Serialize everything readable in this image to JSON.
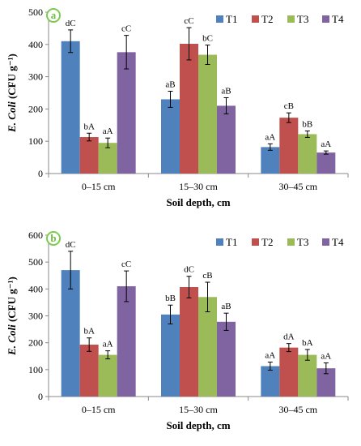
{
  "chart_data": [
    {
      "type": "bar",
      "panel_label": "a",
      "categories": [
        "0–15 cm",
        "15–30 cm",
        "30–45 cm"
      ],
      "series": [
        {
          "name": "T1",
          "values": [
            410,
            230,
            82
          ],
          "errors": [
            35,
            25,
            10
          ],
          "labels": [
            "dC",
            "aB",
            "aA"
          ]
        },
        {
          "name": "T2",
          "values": [
            113,
            402,
            173
          ],
          "errors": [
            12,
            50,
            15
          ],
          "labels": [
            "bA",
            "cC",
            "cB"
          ]
        },
        {
          "name": "T3",
          "values": [
            95,
            368,
            122
          ],
          "errors": [
            15,
            30,
            10
          ],
          "labels": [
            "aA",
            "bC",
            "bB"
          ]
        },
        {
          "name": "T4",
          "values": [
            376,
            210,
            65
          ],
          "errors": [
            52,
            25,
            5
          ],
          "labels": [
            "cC",
            "aB",
            "aA"
          ]
        }
      ],
      "xlabel": "Soil depth, cm",
      "ylabel": "E. Coli (CFU g⁻¹)",
      "yticks": [
        "0",
        "100",
        "200",
        "300",
        "400",
        "500"
      ],
      "ylim": [
        0,
        500
      ],
      "legend": "top-right",
      "grid": false
    },
    {
      "type": "bar",
      "panel_label": "b",
      "categories": [
        "0–15 cm",
        "15–30 cm",
        "30–45 cm"
      ],
      "series": [
        {
          "name": "T1",
          "values": [
            470,
            305,
            113
          ],
          "errors": [
            70,
            35,
            15
          ],
          "labels": [
            "dC",
            "bB",
            "aA"
          ]
        },
        {
          "name": "T2",
          "values": [
            193,
            407,
            182
          ],
          "errors": [
            25,
            40,
            15
          ],
          "labels": [
            "bA",
            "dC",
            "dA"
          ]
        },
        {
          "name": "T3",
          "values": [
            155,
            370,
            155
          ],
          "errors": [
            15,
            55,
            20
          ],
          "labels": [
            "aA",
            "cB",
            "bA"
          ]
        },
        {
          "name": "T4",
          "values": [
            410,
            278,
            105
          ],
          "errors": [
            57,
            32,
            20
          ],
          "labels": [
            "cC",
            "aB",
            "aA"
          ]
        }
      ],
      "xlabel": "Soil depth, cm",
      "ylabel": "E. Coli (CFU g⁻¹)",
      "yticks": [
        "0",
        "100",
        "200",
        "300",
        "400",
        "500",
        "600"
      ],
      "ylim": [
        0,
        600
      ],
      "legend": "top-right",
      "grid": false
    }
  ],
  "colors": {
    "T1": "#4f81bd",
    "T2": "#c0504d",
    "T3": "#9bbb59",
    "T4": "#8064a2",
    "panel_circle": "#7dcb4f"
  }
}
